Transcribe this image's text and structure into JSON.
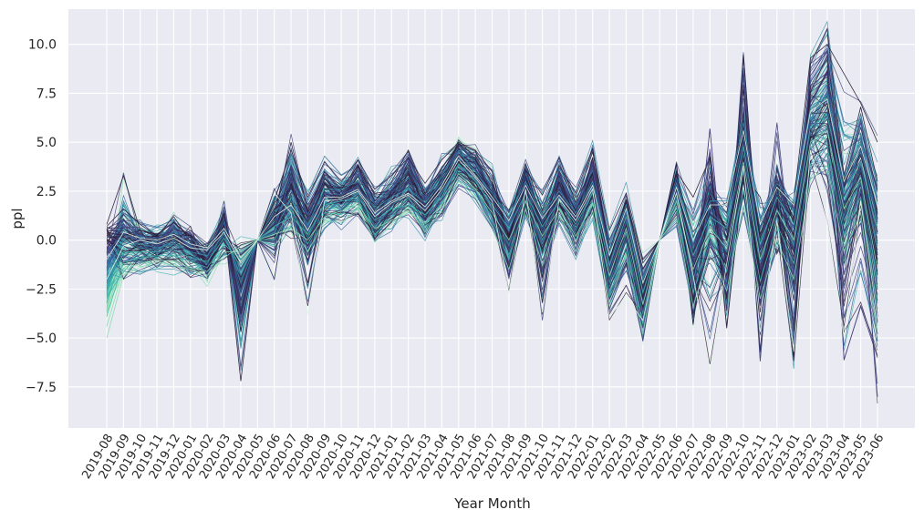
{
  "chart_data": {
    "type": "line",
    "title": "",
    "xlabel": "Year Month",
    "ylabel": "ppl",
    "grid": true,
    "legend": "none",
    "ylim": [
      -9.6,
      11.8
    ],
    "x": [
      "2019-08",
      "2019-09",
      "2019-10",
      "2019-11",
      "2019-12",
      "2020-01",
      "2020-02",
      "2020-03",
      "2020-04",
      "2020-05",
      "2020-06",
      "2020-07",
      "2020-08",
      "2020-09",
      "2020-10",
      "2020-11",
      "2020-12",
      "2021-01",
      "2021-02",
      "2021-03",
      "2021-04",
      "2021-05",
      "2021-06",
      "2021-07",
      "2021-08",
      "2021-09",
      "2021-10",
      "2021-11",
      "2021-12",
      "2022-01",
      "2022-02",
      "2022-03",
      "2022-04",
      "2022-05",
      "2022-06",
      "2022-07",
      "2022-08",
      "2022-09",
      "2022-10",
      "2022-11",
      "2022-12",
      "2023-01",
      "2023-02",
      "2023-03",
      "2023-04",
      "2023-05",
      "2023-06"
    ],
    "x_tick_labels": [
      "2019-08",
      "2019-09",
      "2019-10",
      "2019-11",
      "2019-12",
      "2020-01",
      "2020-02",
      "2020-03",
      "2020-04",
      "2020-05",
      "2020-06",
      "2020-07",
      "2020-08",
      "2020-09",
      "2020-10",
      "2020-11",
      "2020-12",
      "2021-01",
      "2021-02",
      "2021-03",
      "2021-04",
      "2021-05",
      "2021-06",
      "2021-07",
      "2021-08",
      "2021-09",
      "2021-10",
      "2021-11",
      "2021-12",
      "2022-01",
      "2022-02",
      "2022-03",
      "2022-04",
      "2022-05",
      "2022-06",
      "2022-07",
      "2022-08",
      "2022-09",
      "2022-10",
      "2022-11",
      "2022-12",
      "2023-01",
      "2023-02",
      "2023-03",
      "2023-04",
      "2023-05",
      "2023-06"
    ],
    "y_ticks": [
      -7.5,
      -5.0,
      -2.5,
      0.0,
      2.5,
      5.0,
      7.5,
      10.0
    ],
    "y_tick_labels": [
      "−7.5",
      "−5.0",
      "−2.5",
      "0.0",
      "2.5",
      "5.0",
      "7.5",
      "10.0"
    ],
    "palette": [
      "#2e1e3b",
      "#413d7b",
      "#37659e",
      "#348fa7",
      "#40b7ad",
      "#8bdab2",
      "#def5e5"
    ],
    "series": [
      {
        "values": [
          0.8,
          3.3,
          0.5,
          0.3,
          0.9,
          0.2,
          -1.2,
          0.9,
          -7.2,
          0.0,
          1.3,
          5.0,
          1.5,
          3.5,
          2.6,
          3.8,
          2.0,
          3.0,
          4.6,
          2.4,
          3.7,
          4.9,
          4.3,
          2.9,
          1.0,
          3.9,
          1.5,
          3.8,
          2.4,
          4.7,
          -0.6,
          2.0,
          -1.5,
          0.0,
          3.5,
          2.2,
          4.2,
          -4.5,
          3.4,
          2.2,
          -0.7,
          2.0,
          9.3,
          10.0,
          8.5,
          7.0,
          5.0
        ]
      },
      {
        "values": [
          0.7,
          1.6,
          0.8,
          0.2,
          1.2,
          -0.1,
          -1.6,
          1.4,
          -4.7,
          0.0,
          2.0,
          4.6,
          2.2,
          4.0,
          3.0,
          4.1,
          2.6,
          3.3,
          4.2,
          2.9,
          4.1,
          5.0,
          4.6,
          3.5,
          0.0,
          3.6,
          2.3,
          4.2,
          1.9,
          4.5,
          0.5,
          2.4,
          -1.0,
          0.0,
          3.9,
          -4.3,
          2.4,
          -3.0,
          9.5,
          -2.0,
          2.3,
          -6.0,
          9.0,
          10.8,
          3.3,
          6.8,
          3.0
        ]
      },
      {
        "values": [
          0.6,
          1.0,
          0.3,
          0.0,
          0.5,
          0.4,
          -1.0,
          0.5,
          -4.2,
          0.0,
          -0.5,
          3.8,
          1.0,
          3.0,
          2.2,
          3.4,
          1.4,
          2.5,
          4.0,
          1.8,
          3.1,
          4.4,
          3.9,
          2.2,
          -0.5,
          3.2,
          -1.5,
          3.5,
          1.0,
          4.0,
          -1.5,
          1.0,
          -3.2,
          0.0,
          3.0,
          -2.6,
          5.7,
          -3.5,
          6.8,
          -6.2,
          3.7,
          -0.6,
          8.4,
          9.7,
          -6.1,
          -3.4,
          -6.0
        ]
      },
      {
        "values": [
          0.4,
          0.8,
          -0.2,
          -0.4,
          0.7,
          -0.6,
          -1.5,
          2.0,
          -3.5,
          0.0,
          -2.0,
          3.2,
          -0.5,
          2.5,
          1.8,
          2.9,
          0.5,
          1.8,
          3.0,
          1.0,
          2.5,
          3.8,
          3.2,
          1.5,
          -1.8,
          2.8,
          -3.8,
          2.8,
          -0.5,
          3.2,
          -3.0,
          -1.0,
          -4.5,
          0.0,
          2.5,
          -1.0,
          3.0,
          -1.0,
          8.5,
          -1.5,
          6.0,
          -2.0,
          7.0,
          8.5,
          -1.0,
          3.0,
          -8.0
        ]
      },
      {
        "values": [
          0.1,
          0.6,
          0.2,
          0.1,
          0.4,
          0.1,
          -0.6,
          1.1,
          -3.0,
          0.0,
          0.5,
          3.3,
          1.3,
          3.2,
          2.4,
          3.3,
          1.8,
          2.6,
          3.6,
          2.0,
          3.3,
          4.6,
          4.0,
          2.6,
          0.8,
          3.4,
          1.0,
          3.2,
          1.6,
          3.6,
          -1.2,
          1.5,
          -2.6,
          0.0,
          3.2,
          -0.5,
          2.4,
          1.2,
          5.2,
          0.6,
          3.2,
          1.4,
          6.4,
          7.8,
          2.6,
          4.6,
          1.0
        ]
      },
      {
        "values": [
          -0.6,
          0.3,
          0.0,
          -0.3,
          0.3,
          -0.3,
          -0.9,
          0.9,
          -2.6,
          0.0,
          0.9,
          2.6,
          0.6,
          2.4,
          2.3,
          2.8,
          1.2,
          2.2,
          3.2,
          1.6,
          2.9,
          4.2,
          3.6,
          2.1,
          0.4,
          2.9,
          0.4,
          2.7,
          1.0,
          3.0,
          -1.6,
          0.9,
          -3.2,
          0.0,
          2.7,
          -1.3,
          1.6,
          0.4,
          4.4,
          -0.4,
          2.4,
          0.6,
          5.5,
          6.8,
          1.8,
          3.8,
          -0.5
        ]
      },
      {
        "values": [
          -1.6,
          0.0,
          -0.4,
          -0.5,
          0.0,
          -0.7,
          -1.2,
          0.5,
          -2.2,
          0.0,
          0.4,
          2.2,
          0.1,
          1.9,
          1.8,
          2.4,
          0.7,
          1.7,
          2.7,
          1.2,
          2.4,
          3.8,
          3.1,
          1.6,
          -0.3,
          2.5,
          -0.2,
          2.2,
          0.5,
          2.5,
          -2.2,
          0.3,
          -3.8,
          0.0,
          2.2,
          -2.0,
          0.9,
          -0.6,
          3.5,
          -1.2,
          1.6,
          -0.3,
          4.7,
          5.8,
          1.0,
          3.0,
          -2.0
        ]
      },
      {
        "values": [
          -2.5,
          -0.2,
          -0.2,
          -0.4,
          -0.2,
          -0.6,
          -0.8,
          0.3,
          -1.8,
          0.0,
          1.5,
          2.0,
          0.8,
          2.6,
          2.6,
          3.0,
          1.6,
          2.2,
          2.6,
          1.9,
          3.0,
          4.5,
          3.5,
          2.4,
          1.2,
          3.0,
          1.3,
          2.5,
          1.4,
          3.0,
          -0.6,
          1.8,
          -2.0,
          0.0,
          2.9,
          0.2,
          2.0,
          2.0,
          6.0,
          1.0,
          2.9,
          2.0,
          6.8,
          7.4,
          3.2,
          5.0,
          2.0
        ]
      },
      {
        "values": [
          -3.2,
          -0.6,
          -0.6,
          -0.6,
          -0.5,
          -0.9,
          -1.1,
          0.1,
          -1.4,
          0.0,
          0.0,
          1.6,
          -0.2,
          1.4,
          1.3,
          2.0,
          0.3,
          1.2,
          2.2,
          0.8,
          1.9,
          3.4,
          2.6,
          1.1,
          -1.0,
          2.0,
          -0.8,
          1.7,
          0.0,
          2.0,
          -2.8,
          -0.3,
          -4.3,
          0.0,
          1.7,
          -2.7,
          0.2,
          -1.6,
          2.6,
          -2.1,
          0.8,
          -1.2,
          3.9,
          4.8,
          0.2,
          2.2,
          -3.5
        ]
      },
      {
        "values": [
          -3.9,
          -1.1,
          -0.9,
          -0.8,
          -0.8,
          -1.1,
          -1.4,
          -0.2,
          -1.0,
          0.0,
          0.7,
          1.2,
          0.3,
          1.8,
          2.0,
          2.2,
          1.0,
          1.6,
          1.8,
          1.3,
          2.2,
          3.9,
          3.0,
          1.8,
          0.6,
          2.4,
          0.7,
          2.0,
          0.8,
          2.4,
          -1.3,
          1.2,
          -2.7,
          0.0,
          2.4,
          -0.8,
          1.2,
          0.6,
          4.8,
          -0.2,
          2.2,
          0.8,
          5.8,
          6.4,
          2.4,
          4.0,
          0.5
        ]
      },
      {
        "values": [
          -4.4,
          -1.5,
          -1.2,
          -1.0,
          -1.1,
          -1.4,
          -1.6,
          -0.6,
          -0.6,
          0.0,
          -0.3,
          0.8,
          -0.6,
          1.0,
          0.9,
          1.6,
          -0.1,
          0.8,
          1.7,
          0.4,
          1.5,
          3.0,
          2.2,
          0.7,
          -1.5,
          1.6,
          -1.3,
          1.2,
          -0.6,
          1.5,
          -3.2,
          -0.8,
          -4.8,
          0.0,
          1.2,
          -3.4,
          -0.5,
          -2.6,
          1.8,
          -3.0,
          0.0,
          -2.0,
          3.1,
          3.8,
          -0.6,
          1.4,
          -5.0
        ]
      },
      {
        "values": [
          -5.0,
          -1.8,
          -1.4,
          -1.1,
          -1.3,
          -1.5,
          -1.8,
          -0.9,
          -0.3,
          0.0,
          0.3,
          0.6,
          0.0,
          1.2,
          1.5,
          1.8,
          0.6,
          1.0,
          1.4,
          0.9,
          1.8,
          3.4,
          2.6,
          1.4,
          0.0,
          2.0,
          0.2,
          1.6,
          0.2,
          1.9,
          -1.8,
          0.6,
          -3.3,
          0.0,
          2.0,
          -1.5,
          0.6,
          -0.4,
          4.0,
          -1.0,
          1.5,
          0.0,
          5.0,
          5.6,
          1.6,
          3.2,
          -1.5
        ]
      },
      {
        "values": [
          -2.0,
          -0.3,
          0.0,
          -0.2,
          0.1,
          -0.4,
          -0.5,
          0.4,
          -1.2,
          0.0,
          1.2,
          1.8,
          0.5,
          2.2,
          2.2,
          2.6,
          1.4,
          2.0,
          2.4,
          1.7,
          2.8,
          4.3,
          3.3,
          2.2,
          1.0,
          2.8,
          1.1,
          2.3,
          1.2,
          2.8,
          -0.8,
          1.6,
          -2.2,
          0.0,
          2.7,
          0.0,
          1.8,
          1.8,
          5.6,
          0.8,
          2.7,
          1.8,
          6.6,
          7.2,
          3.0,
          4.8,
          1.8
        ]
      },
      {
        "values": [
          -1.0,
          0.4,
          0.1,
          0.0,
          0.3,
          -0.2,
          -0.4,
          0.6,
          -0.9,
          0.0,
          2.4,
          1.4,
          -3.8,
          2.0,
          2.1,
          2.5,
          1.2,
          1.9,
          2.3,
          1.5,
          2.6,
          4.1,
          3.2,
          2.0,
          -2.7,
          2.6,
          -3.7,
          2.1,
          1.0,
          2.6,
          -3.9,
          -2.9,
          -4.1,
          0.0,
          2.4,
          -1.8,
          -6.7,
          -1.2,
          3.8,
          -4.7,
          1.0,
          -5.7,
          4.6,
          1.0,
          -5.0,
          2.0,
          -4.0
        ]
      }
    ]
  }
}
